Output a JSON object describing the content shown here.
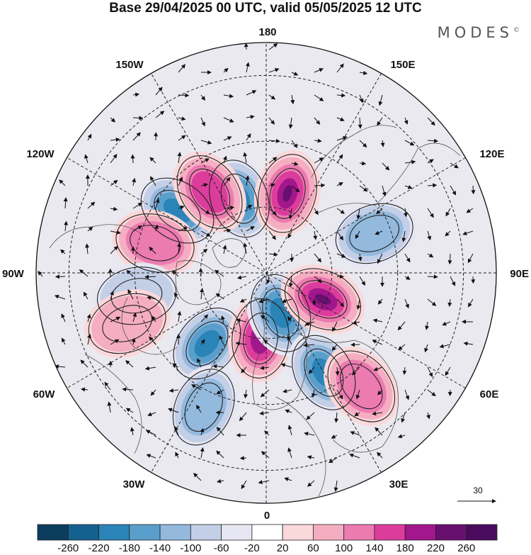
{
  "title": "Base 29/04/2025 00 UTC, valid 05/05/2025 12 UTC",
  "logo": "MODES",
  "logo_mark": "©",
  "longitude_labels": {
    "top": "180",
    "bottom": "0",
    "left": "90W",
    "right": "90E",
    "upper_left": "150W",
    "upper_right": "150E",
    "mid_upper_left": "120W",
    "mid_upper_right": "120E",
    "mid_lower_left": "60W",
    "mid_lower_right": "60E",
    "lower_left": "30W",
    "lower_right": "30E"
  },
  "vector_scale_label": "30",
  "colorbar": {
    "ticks": [
      "-260",
      "-220",
      "-180",
      "-140",
      "-100",
      "-60",
      "-20",
      "20",
      "60",
      "100",
      "140",
      "180",
      "220",
      "260"
    ],
    "colors": [
      "#0c3d5e",
      "#14618f",
      "#2a84b8",
      "#5a9fcc",
      "#93b9dd",
      "#c3cfe7",
      "#e6e7f2",
      "#ffffff",
      "#fbd8da",
      "#f5aec1",
      "#ec7bb0",
      "#dc3d9d",
      "#a2178c",
      "#68106f",
      "#4a0a5e"
    ]
  },
  "anomaly_features": [
    {
      "sign": "neg",
      "level": 4,
      "lon": -160,
      "colat": 24
    },
    {
      "sign": "pos",
      "level": 5,
      "lon": 165,
      "colat": 25
    },
    {
      "sign": "neg",
      "level": 4,
      "lon": -125,
      "colat": 33
    },
    {
      "sign": "pos",
      "level": 3,
      "lon": -145,
      "colat": 30
    },
    {
      "sign": "pos",
      "level": 2,
      "lon": -105,
      "colat": 35
    },
    {
      "sign": "neg",
      "level": 4,
      "lon": -40,
      "colat": 28
    },
    {
      "sign": "pos",
      "level": 4,
      "lon": -5,
      "colat": 20
    },
    {
      "sign": "neg",
      "level": 4,
      "lon": 20,
      "colat": 13
    },
    {
      "sign": "pos",
      "level": 5,
      "lon": 65,
      "colat": 19
    },
    {
      "sign": "neg",
      "level": 4,
      "lon": 30,
      "colat": 35
    },
    {
      "sign": "neg",
      "level": 2,
      "lon": -25,
      "colat": 45
    },
    {
      "sign": "neg",
      "level": 2,
      "lon": 110,
      "colat": 35
    },
    {
      "sign": "pos",
      "level": 2,
      "lon": 40,
      "colat": 45
    },
    {
      "sign": "neg",
      "level": 1,
      "lon": -80,
      "colat": 40
    },
    {
      "sign": "pos",
      "level": 1,
      "lon": -70,
      "colat": 45
    }
  ]
}
